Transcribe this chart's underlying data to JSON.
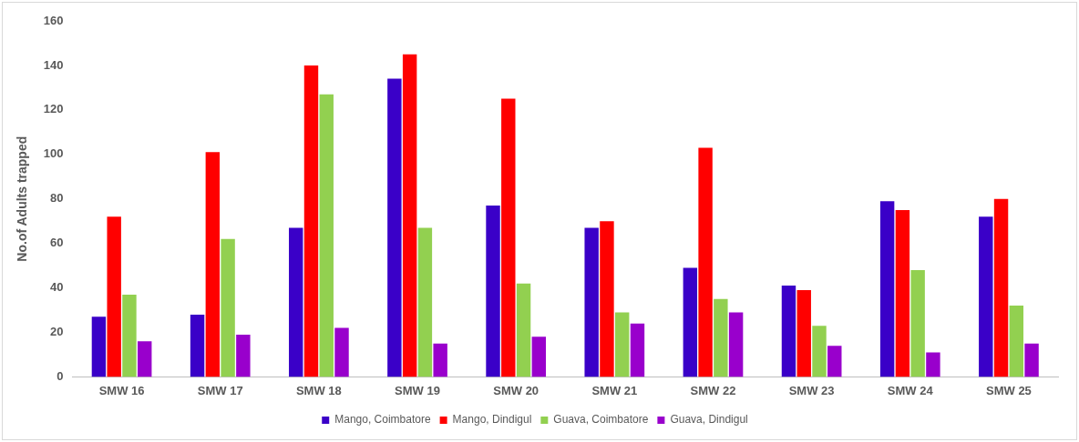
{
  "chart_data": {
    "type": "bar",
    "ylabel": "No.of Adults trapped",
    "categories": [
      "SMW 16",
      "SMW 17",
      "SMW 18",
      "SMW 19",
      "SMW 20",
      "SMW 21",
      "SMW 22",
      "SMW 23",
      "SMW 24",
      "SMW 25"
    ],
    "series": [
      {
        "name": "Mango, Coimbatore",
        "color": "#3a00c8",
        "values": [
          27,
          28,
          67,
          134,
          77,
          67,
          49,
          41,
          79,
          72
        ]
      },
      {
        "name": "Mango, Dindigul",
        "color": "#ff0000",
        "values": [
          72,
          101,
          140,
          145,
          125,
          70,
          103,
          39,
          75,
          80
        ]
      },
      {
        "name": "Guava, Coimbatore",
        "color": "#92d050",
        "values": [
          37,
          62,
          127,
          67,
          42,
          29,
          35,
          23,
          48,
          32
        ]
      },
      {
        "name": "Guava, Dindigul",
        "color": "#9900cc",
        "values": [
          16,
          19,
          22,
          15,
          18,
          24,
          29,
          14,
          11,
          15
        ]
      }
    ],
    "ylim": [
      0,
      160
    ],
    "yticks": [
      0,
      20,
      40,
      60,
      80,
      100,
      120,
      140,
      160
    ],
    "grid": false,
    "legend": "bottom"
  }
}
